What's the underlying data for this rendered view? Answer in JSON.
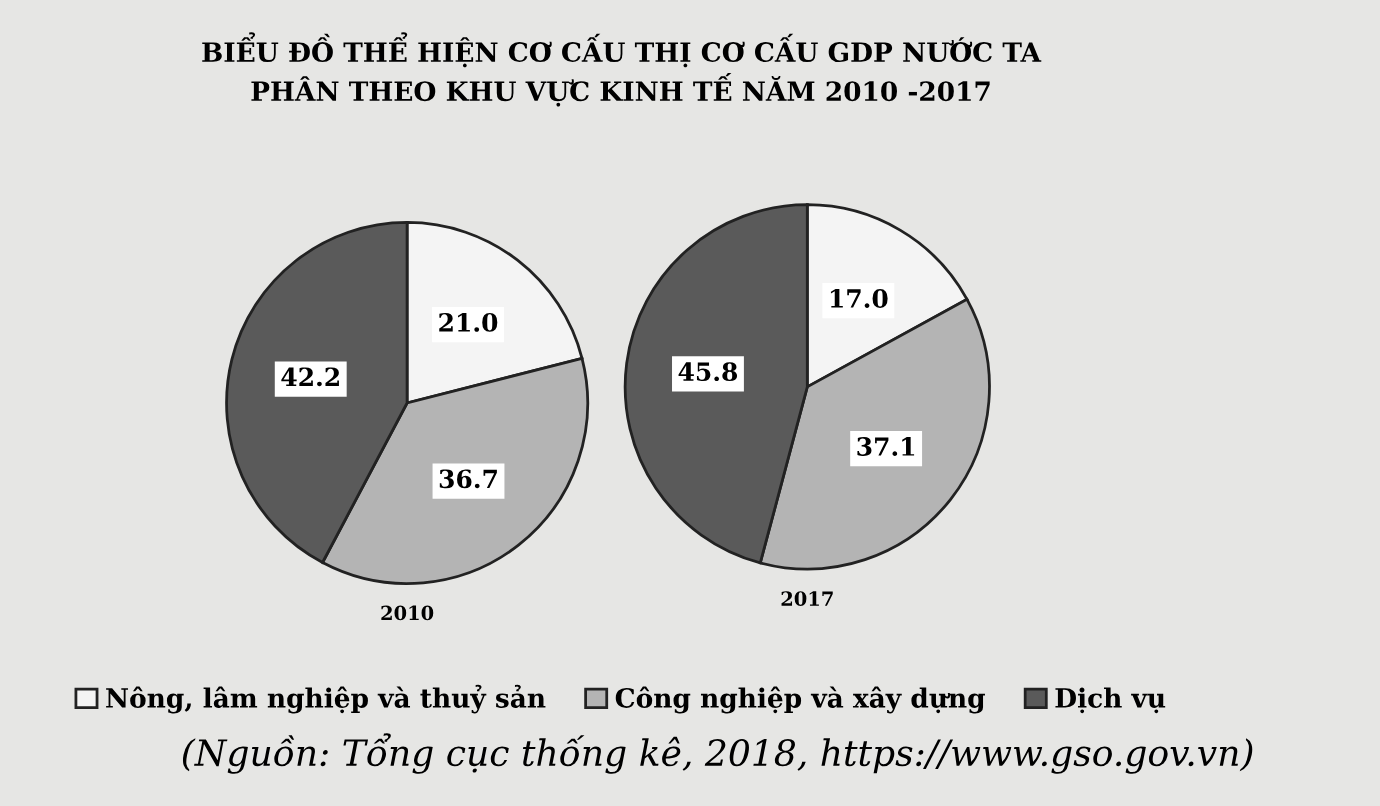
{
  "chart_data": [
    {
      "type": "pie",
      "title": "BIỂU ĐỒ THỂ HIỆN CƠ CẤU THỊ CƠ CẤU GDP NƯỚC TA\nPHÂN THEO KHU VỰC KINH TẾ NĂM 2010 -2017",
      "xlabel": "2010",
      "categories": [
        "Nông, lâm nghiệp và thuỷ sản",
        "Công nghiệp và xây dựng",
        "Dịch vụ"
      ],
      "values": [
        21.0,
        36.7,
        42.2
      ],
      "value_labels": [
        "21.0",
        "36.7",
        "42.2"
      ],
      "colors": [
        "#f4f4f4",
        "#b4b4b4",
        "#5a5a5a"
      ],
      "legend": "bottom",
      "annotations": [
        "(Nguồn: Tổng cục thống kê, 2018, https://www.gso.gov.vn)"
      ]
    },
    {
      "type": "pie",
      "xlabel": "2017",
      "categories": [
        null,
        null,
        null
      ],
      "values": [
        17.0,
        37.1,
        45.8
      ],
      "value_labels": [
        "17.0",
        "37.1",
        "45.8"
      ],
      "colors": [
        "#f4f4f4",
        "#b4b4b4",
        "#5a5a5a"
      ]
    }
  ]
}
